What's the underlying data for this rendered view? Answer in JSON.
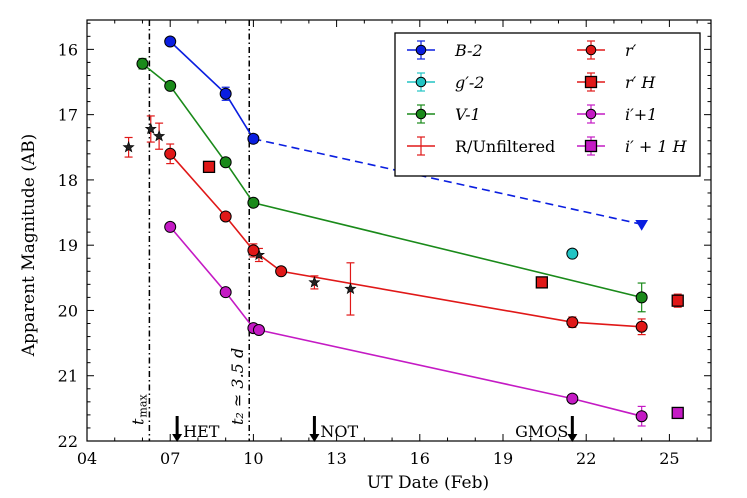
{
  "chart_data": {
    "type": "scatter",
    "xlabel": "UT Date (Feb)",
    "ylabel": "Apparent Magnitude (AB)",
    "xlim": [
      4,
      26.5
    ],
    "ylim": [
      22,
      15.55
    ],
    "y_inverted": true,
    "xticks": [
      {
        "v": 4,
        "label": "04"
      },
      {
        "v": 7,
        "label": "07"
      },
      {
        "v": 10,
        "label": "10"
      },
      {
        "v": 13,
        "label": "13"
      },
      {
        "v": 16,
        "label": "16"
      },
      {
        "v": 19,
        "label": "19"
      },
      {
        "v": 22,
        "label": "22"
      },
      {
        "v": 25,
        "label": "25"
      }
    ],
    "yticks": [
      {
        "v": 16,
        "label": "16"
      },
      {
        "v": 17,
        "label": "17"
      },
      {
        "v": 18,
        "label": "18"
      },
      {
        "v": 19,
        "label": "19"
      },
      {
        "v": 20,
        "label": "20"
      },
      {
        "v": 21,
        "label": "21"
      },
      {
        "v": 22,
        "label": "22"
      }
    ],
    "vlines": [
      {
        "x": 6.25,
        "label_main": "t",
        "label_sub": "max"
      },
      {
        "x": 9.85,
        "label_main": "t₂ ≃ 3.5 d",
        "label_sub": ""
      }
    ],
    "arrows": [
      {
        "x": 7.25,
        "label": "HET"
      },
      {
        "x": 12.2,
        "label": "NOT"
      },
      {
        "x": 21.5,
        "label": "GMOS"
      }
    ],
    "series": [
      {
        "name": "B-2",
        "color": "#0a1ee0",
        "marker": "circle",
        "line": "solid",
        "points": [
          {
            "x": 7.0,
            "y": 15.88
          },
          {
            "x": 9.0,
            "y": 16.68,
            "err": 0.1
          },
          {
            "x": 10.0,
            "y": 17.37,
            "err": 0.06
          }
        ]
      },
      {
        "name": "B-2 (extrapolated)",
        "color": "#0a1ee0",
        "marker": "triangle-down",
        "line": "dashed",
        "legend": false,
        "points": [
          {
            "x": 10.0,
            "y": 17.37
          },
          {
            "x": 24.0,
            "y": 18.68
          }
        ]
      },
      {
        "name": "g′-2",
        "color": "#22c4c4",
        "marker": "circle",
        "line": "none",
        "points": [
          {
            "x": 21.5,
            "y": 19.13
          }
        ]
      },
      {
        "name": "V-1",
        "color": "#1a8a1a",
        "marker": "circle",
        "line": "solid",
        "points": [
          {
            "x": 6.0,
            "y": 16.22,
            "err": 0.08
          },
          {
            "x": 7.0,
            "y": 16.56
          },
          {
            "x": 9.0,
            "y": 17.73,
            "err": 0.06
          },
          {
            "x": 10.0,
            "y": 18.35
          },
          {
            "x": 24.0,
            "y": 19.8,
            "err": 0.22
          }
        ]
      },
      {
        "name": "R/Unfiltered",
        "color": "#e01818",
        "marker": "star",
        "line": "none",
        "points": [
          {
            "x": 5.5,
            "y": 17.5,
            "err": 0.15
          },
          {
            "x": 6.3,
            "y": 17.22,
            "err": 0.2
          },
          {
            "x": 6.6,
            "y": 17.33,
            "err": 0.2
          },
          {
            "x": 10.2,
            "y": 19.15,
            "err": 0.1
          },
          {
            "x": 12.2,
            "y": 19.57,
            "err": 0.1
          },
          {
            "x": 13.5,
            "y": 19.67,
            "err": 0.4
          }
        ]
      },
      {
        "name": "r′",
        "color": "#e01818",
        "marker": "circle",
        "line": "solid",
        "points": [
          {
            "x": 7.0,
            "y": 17.6,
            "err": 0.15
          },
          {
            "x": 9.0,
            "y": 18.56
          },
          {
            "x": 10.0,
            "y": 19.08,
            "err": 0.1
          },
          {
            "x": 11.0,
            "y": 19.4
          },
          {
            "x": 21.5,
            "y": 20.18,
            "err": 0.08
          },
          {
            "x": 24.0,
            "y": 20.25,
            "err": 0.12
          }
        ]
      },
      {
        "name": "r′ H",
        "color": "#e01818",
        "marker": "square",
        "line": "none",
        "points": [
          {
            "x": 8.4,
            "y": 17.8
          },
          {
            "x": 20.4,
            "y": 19.57
          },
          {
            "x": 25.3,
            "y": 19.85,
            "err": 0.1
          }
        ]
      },
      {
        "name": "i′+1",
        "color": "#c41ac4",
        "marker": "circle",
        "line": "solid",
        "points": [
          {
            "x": 7.0,
            "y": 18.72
          },
          {
            "x": 9.0,
            "y": 19.72
          },
          {
            "x": 10.0,
            "y": 20.27
          },
          {
            "x": 10.2,
            "y": 20.3
          },
          {
            "x": 21.5,
            "y": 21.35,
            "err": 0.06
          },
          {
            "x": 24.0,
            "y": 21.62,
            "err": 0.15
          }
        ]
      },
      {
        "name": "i′ + 1 H",
        "color": "#c41ac4",
        "marker": "square",
        "line": "none",
        "points": [
          {
            "x": 25.3,
            "y": 21.57
          }
        ]
      }
    ],
    "legend": {
      "placement": "top-right",
      "entries": [
        {
          "label": "B-2",
          "color": "#0a1ee0",
          "marker": "circle",
          "errorbar": true
        },
        {
          "label": "g′-2",
          "color": "#22c4c4",
          "marker": "circle",
          "errorbar": true
        },
        {
          "label": "V-1",
          "color": "#1a8a1a",
          "marker": "circle",
          "errorbar": true
        },
        {
          "label": "R/Unfiltered",
          "color": "#e01818",
          "marker": "none",
          "errorbar": true
        },
        {
          "label": "r′",
          "color": "#e01818",
          "marker": "circle",
          "errorbar": true
        },
        {
          "label": "r′ H",
          "color": "#e01818",
          "marker": "square",
          "errorbar": true
        },
        {
          "label": "i′+1",
          "color": "#c41ac4",
          "marker": "circle",
          "errorbar": true
        },
        {
          "label": "i′ + 1 H",
          "color": "#c41ac4",
          "marker": "square",
          "errorbar": true
        }
      ]
    }
  }
}
